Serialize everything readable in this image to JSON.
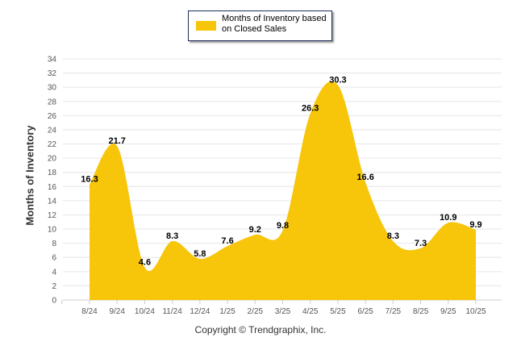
{
  "chart_data": {
    "type": "area",
    "title": "",
    "legend": {
      "label": "Months of Inventory based on Closed Sales",
      "placement": "top-center"
    },
    "ylabel": "Months of Inventory",
    "xlabel": "",
    "ylim": [
      0,
      34
    ],
    "yticks": [
      0,
      2,
      4,
      6,
      8,
      10,
      12,
      14,
      16,
      18,
      20,
      22,
      24,
      26,
      28,
      30,
      32,
      34
    ],
    "grid": true,
    "categories": [
      "8/24",
      "9/24",
      "10/24",
      "11/24",
      "12/24",
      "1/25",
      "2/25",
      "3/25",
      "4/25",
      "5/25",
      "6/25",
      "7/25",
      "8/25",
      "9/25",
      "10/25"
    ],
    "series": [
      {
        "name": "Months of Inventory based on Closed Sales",
        "values": [
          16.3,
          21.7,
          4.6,
          8.3,
          5.8,
          7.6,
          9.2,
          9.8,
          26.3,
          30.3,
          16.6,
          8.3,
          7.3,
          10.9,
          9.9
        ],
        "color": "#f7c50a"
      }
    ]
  },
  "footer": {
    "credit": "Copyright © Trendgraphix, Inc."
  }
}
